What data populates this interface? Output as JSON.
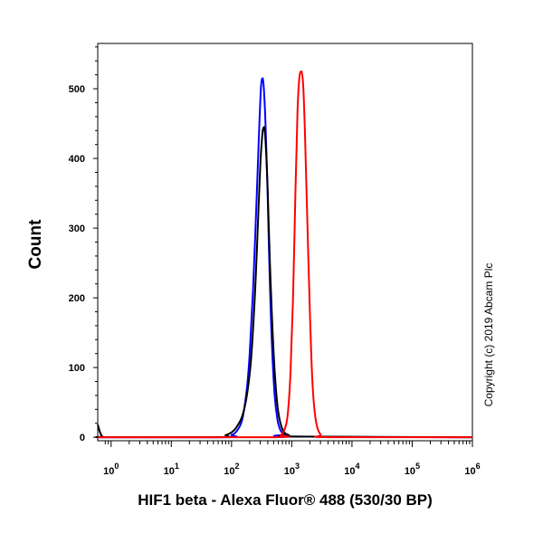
{
  "chart_data": {
    "type": "line",
    "title": "",
    "xlabel": "HIF1 beta - Alexa Fluor® 488 (530/30 BP)",
    "ylabel": "Count",
    "x_scale": "log",
    "xlim": [
      0.6,
      1000000
    ],
    "ylim": [
      -5,
      565
    ],
    "x_tick_labels": [
      {
        "base": "10",
        "exp": "0",
        "value": 1
      },
      {
        "base": "10",
        "exp": "1",
        "value": 10
      },
      {
        "base": "10",
        "exp": "2",
        "value": 100
      },
      {
        "base": "10",
        "exp": "3",
        "value": 1000
      },
      {
        "base": "10",
        "exp": "4",
        "value": 10000
      },
      {
        "base": "10",
        "exp": "5",
        "value": 100000
      },
      {
        "base": "10",
        "exp": "6",
        "value": 1000000
      }
    ],
    "y_ticks": [
      0,
      100,
      200,
      300,
      400,
      500
    ],
    "y_tick_labels": [
      "0",
      "100",
      "200",
      "300",
      "400",
      "500"
    ],
    "grid": false,
    "legend": "none",
    "copyright": "Copyright (c) 2019 Abcam Plc",
    "series": [
      {
        "color": "#0000ff",
        "x": [
          0.6,
          80,
          100,
          120,
          150,
          180,
          200,
          230,
          260,
          290,
          310,
          330,
          350,
          370,
          400,
          430,
          470,
          520,
          580,
          650,
          750,
          900,
          1000000
        ],
        "y": [
          0,
          0,
          3,
          8,
          25,
          70,
          120,
          220,
          340,
          450,
          505,
          515,
          490,
          440,
          340,
          230,
          130,
          60,
          25,
          10,
          4,
          1,
          0
        ]
      },
      {
        "color": "#000000",
        "x": [
          0.6,
          0.62,
          0.65,
          0.68,
          0.72,
          0.8,
          60,
          80,
          100,
          120,
          150,
          180,
          210,
          240,
          270,
          300,
          330,
          350,
          370,
          400,
          430,
          470,
          520,
          580,
          650,
          750,
          900,
          1100,
          1000000
        ],
        "y": [
          18,
          14,
          8,
          4,
          1,
          0,
          0,
          3,
          7,
          14,
          30,
          60,
          110,
          190,
          290,
          390,
          440,
          445,
          420,
          350,
          260,
          170,
          95,
          45,
          20,
          7,
          3,
          1,
          0
        ]
      },
      {
        "color": "#ff0000",
        "x": [
          0.6,
          500,
          650,
          750,
          850,
          950,
          1050,
          1150,
          1250,
          1350,
          1450,
          1550,
          1650,
          1800,
          2000,
          2200,
          2500,
          3000,
          4000,
          1000000
        ],
        "y": [
          0,
          0,
          3,
          10,
          30,
          90,
          200,
          350,
          470,
          520,
          525,
          505,
          440,
          320,
          180,
          80,
          25,
          4,
          0,
          0
        ]
      }
    ]
  }
}
